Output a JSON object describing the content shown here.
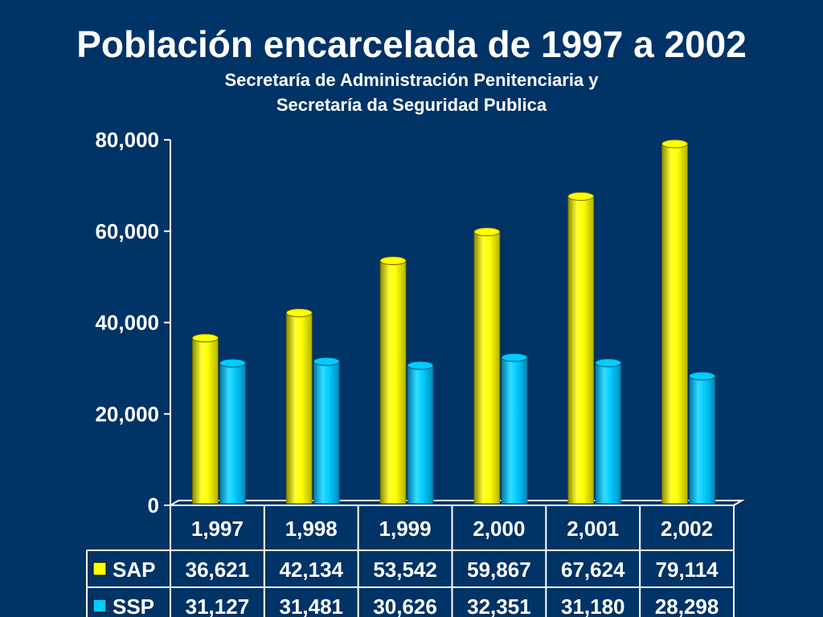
{
  "header": {
    "title": "Población encarcelada de 1997 a 2002",
    "subtitle_line1": "Secretaría de Administración Penitenciaria y",
    "subtitle_line2": "Secretaría da Seguridad Publica"
  },
  "colors": {
    "background": "#003366",
    "sap": "#FFFF00",
    "ssp": "#00CCFF",
    "text": "#FFFFFF"
  },
  "chart_data": {
    "type": "bar",
    "title": "Población encarcelada de 1997 a 2002",
    "subtitle": "Secretaría de Administración Penitenciaria y Secretaría da Seguridad Publica",
    "xlabel": "",
    "ylabel": "",
    "categories": [
      "1,997",
      "1,998",
      "1,999",
      "2,000",
      "2,001",
      "2,002"
    ],
    "ylim": [
      0,
      80000
    ],
    "yticks": [
      0,
      20000,
      40000,
      60000,
      80000
    ],
    "ytick_labels": [
      "0",
      "20,000",
      "40,000",
      "60,000",
      "80,000"
    ],
    "grid": false,
    "legend": "data-table",
    "series": [
      {
        "name": "SAP",
        "values": [
          36621,
          42134,
          53542,
          59867,
          67624,
          79114
        ],
        "value_labels": [
          "36,621",
          "42,134",
          "53,542",
          "59,867",
          "67,624",
          "79,114"
        ]
      },
      {
        "name": "SSP",
        "values": [
          31127,
          31481,
          30626,
          32351,
          31180,
          28298
        ],
        "value_labels": [
          "31,127",
          "31,481",
          "30,626",
          "32,351",
          "31,180",
          "28,298"
        ]
      }
    ]
  }
}
